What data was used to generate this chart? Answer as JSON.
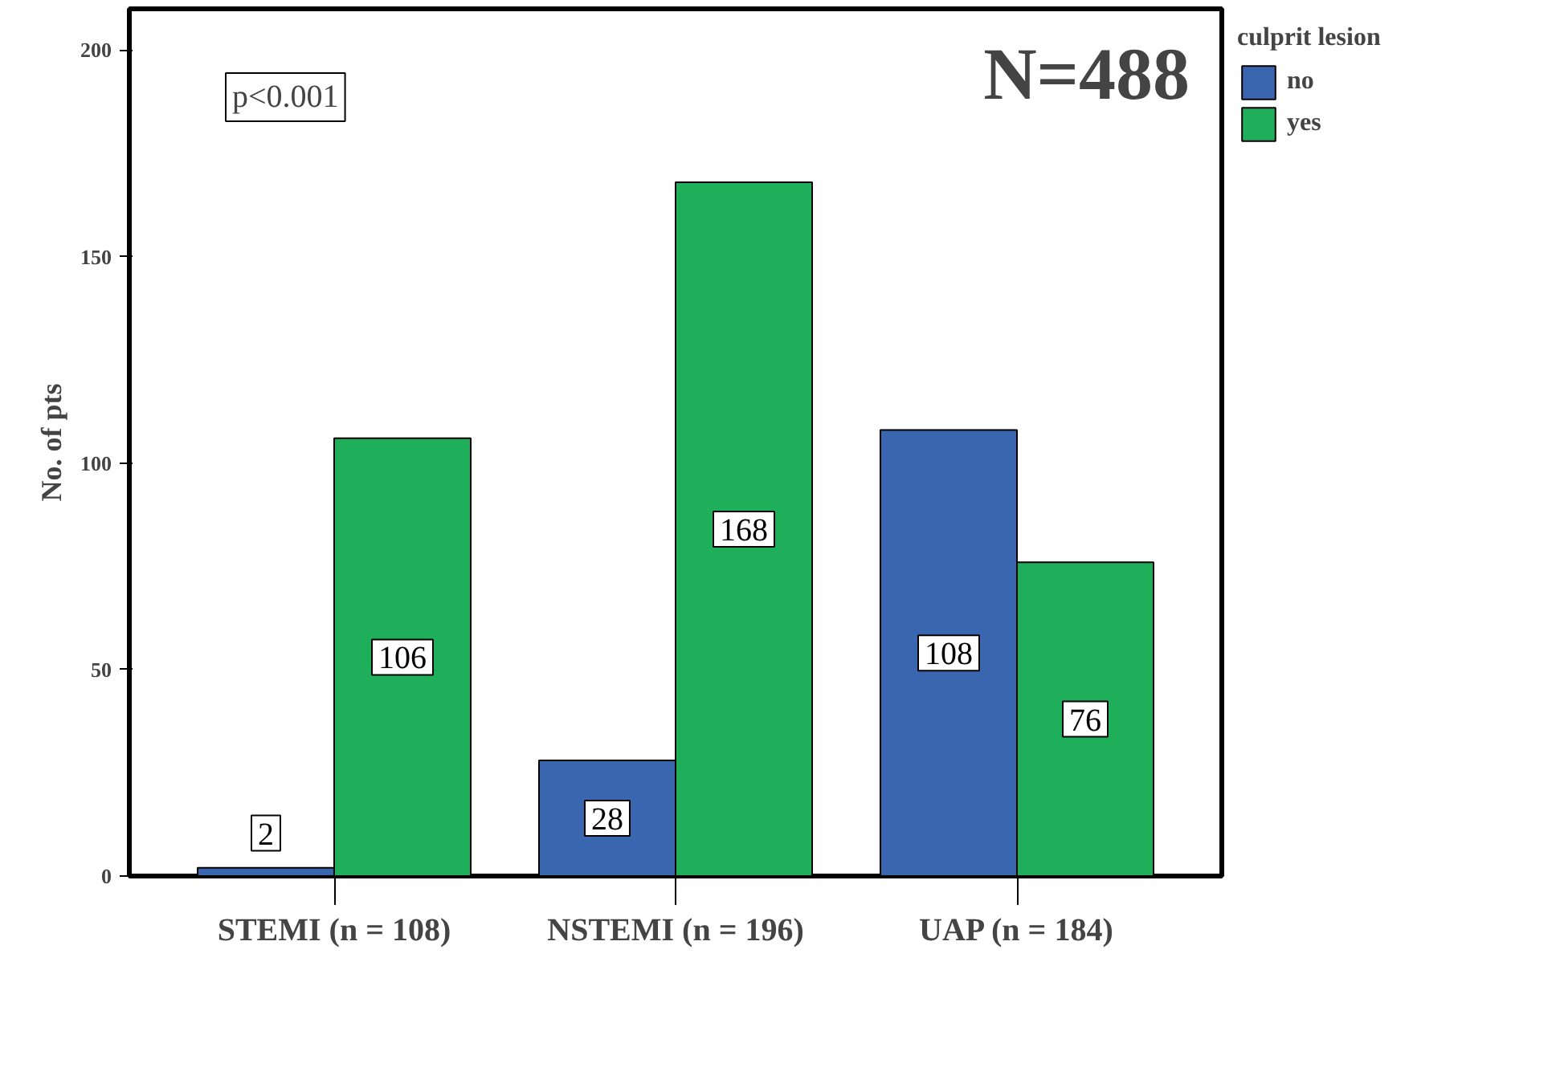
{
  "chart_data": {
    "type": "bar",
    "ylabel": "No. of pts",
    "legend_title": "culprit lesion",
    "categories": [
      "STEMI (n = 108)",
      "NSTEMI (n = 196)",
      "UAP (n = 184)"
    ],
    "series": [
      {
        "name": "no",
        "color": "#3a66b0",
        "values": [
          2,
          28,
          108
        ]
      },
      {
        "name": "yes",
        "color": "#1fae5a",
        "values": [
          106,
          168,
          76
        ]
      }
    ],
    "ylim": [
      0,
      210
    ],
    "yticks": [
      0,
      50,
      100,
      150,
      200
    ],
    "data_labels": true,
    "grid": false,
    "legend": "top right",
    "annotations": [
      "p<0.001",
      "N=488"
    ]
  }
}
